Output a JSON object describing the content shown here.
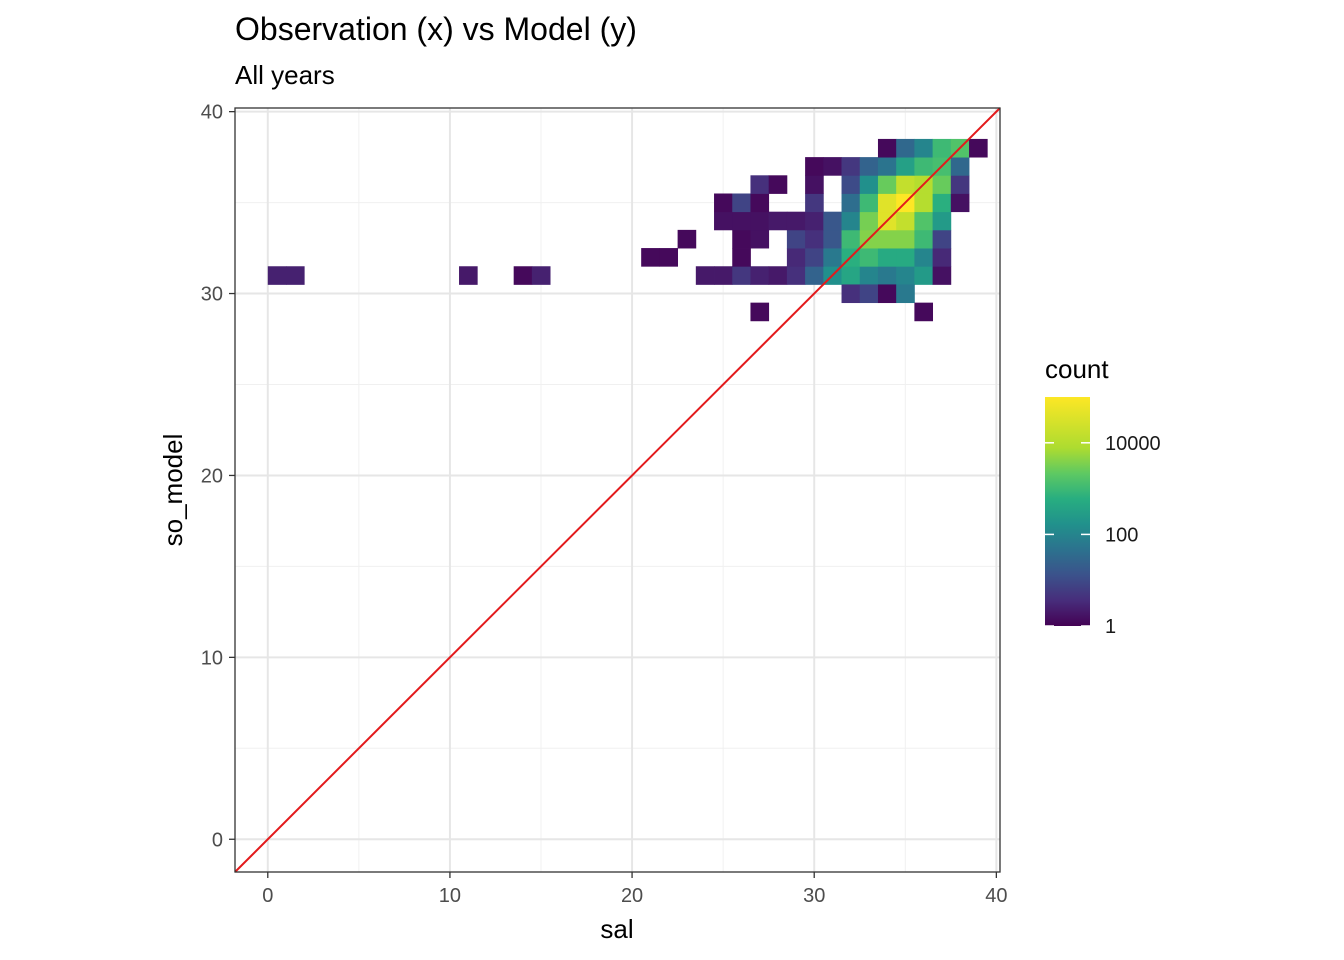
{
  "chart_data": {
    "type": "heatmap",
    "title": "Observation (x) vs Model (y)",
    "subtitle": "All years",
    "xlabel": "sal",
    "ylabel": "so_model",
    "xlim": [
      -1.8,
      40.2
    ],
    "ylim": [
      -1.8,
      40.2
    ],
    "x_ticks": [
      0,
      10,
      20,
      30,
      40
    ],
    "y_ticks": [
      0,
      10,
      20,
      30,
      40
    ],
    "grid": true,
    "bin_width": 1,
    "color_scale": "viridis, log10",
    "legend": {
      "title": "count",
      "position": "right",
      "breaks": [
        {
          "label": "1",
          "log": 0
        },
        {
          "label": "100",
          "log": 2
        },
        {
          "label": "10000",
          "log": 4
        }
      ],
      "log_max": 5
    },
    "reference_line": {
      "slope": 1,
      "intercept": 0,
      "color": "#e31a1c"
    },
    "bins": [
      {
        "x": 0.5,
        "y": 31,
        "log": 0.4
      },
      {
        "x": 1.5,
        "y": 31,
        "log": 0.4
      },
      {
        "x": 11,
        "y": 31,
        "log": 0.3
      },
      {
        "x": 14,
        "y": 31,
        "log": 0.1
      },
      {
        "x": 15,
        "y": 31,
        "log": 0.4
      },
      {
        "x": 21,
        "y": 32,
        "log": 0.1
      },
      {
        "x": 22,
        "y": 32,
        "log": 0.1
      },
      {
        "x": 23,
        "y": 33,
        "log": 0.1
      },
      {
        "x": 24,
        "y": 31,
        "log": 0.3
      },
      {
        "x": 25,
        "y": 31,
        "log": 0.3
      },
      {
        "x": 26,
        "y": 31,
        "log": 0.7
      },
      {
        "x": 27,
        "y": 31,
        "log": 0.4
      },
      {
        "x": 28,
        "y": 31,
        "log": 0.3
      },
      {
        "x": 29,
        "y": 31,
        "log": 0.6
      },
      {
        "x": 30,
        "y": 31,
        "log": 1.4
      },
      {
        "x": 31,
        "y": 31,
        "log": 2.2
      },
      {
        "x": 32,
        "y": 31,
        "log": 2.6
      },
      {
        "x": 33,
        "y": 31,
        "log": 2.0
      },
      {
        "x": 34,
        "y": 31,
        "log": 1.8
      },
      {
        "x": 35,
        "y": 31,
        "log": 2.0
      },
      {
        "x": 36,
        "y": 31,
        "log": 2.4
      },
      {
        "x": 37,
        "y": 31,
        "log": 0.2
      },
      {
        "x": 26,
        "y": 32,
        "log": 0.1
      },
      {
        "x": 29,
        "y": 32,
        "log": 0.5
      },
      {
        "x": 30,
        "y": 32,
        "log": 0.9
      },
      {
        "x": 31,
        "y": 32,
        "log": 1.8
      },
      {
        "x": 32,
        "y": 32,
        "log": 2.8
      },
      {
        "x": 33,
        "y": 32,
        "log": 3.0
      },
      {
        "x": 34,
        "y": 32,
        "log": 2.7
      },
      {
        "x": 35,
        "y": 32,
        "log": 2.7
      },
      {
        "x": 36,
        "y": 32,
        "log": 2.0
      },
      {
        "x": 37,
        "y": 32,
        "log": 0.5
      },
      {
        "x": 26,
        "y": 33,
        "log": 0.1
      },
      {
        "x": 27,
        "y": 33,
        "log": 0.2
      },
      {
        "x": 29,
        "y": 33,
        "log": 0.9
      },
      {
        "x": 30,
        "y": 33,
        "log": 0.6
      },
      {
        "x": 31,
        "y": 33,
        "log": 1.2
      },
      {
        "x": 32,
        "y": 33,
        "log": 3.0
      },
      {
        "x": 33,
        "y": 33,
        "log": 3.6
      },
      {
        "x": 34,
        "y": 33,
        "log": 3.6
      },
      {
        "x": 35,
        "y": 33,
        "log": 3.6
      },
      {
        "x": 36,
        "y": 33,
        "log": 3.0
      },
      {
        "x": 37,
        "y": 33,
        "log": 0.9
      },
      {
        "x": 25,
        "y": 34,
        "log": 0.2
      },
      {
        "x": 26,
        "y": 34,
        "log": 0.2
      },
      {
        "x": 27,
        "y": 34,
        "log": 0.2
      },
      {
        "x": 28,
        "y": 34,
        "log": 0.3
      },
      {
        "x": 29,
        "y": 34,
        "log": 0.3
      },
      {
        "x": 30,
        "y": 34,
        "log": 0.4
      },
      {
        "x": 31,
        "y": 34,
        "log": 1.2
      },
      {
        "x": 32,
        "y": 34,
        "log": 2.0
      },
      {
        "x": 33,
        "y": 34,
        "log": 3.5
      },
      {
        "x": 34,
        "y": 34,
        "log": 4.6
      },
      {
        "x": 35,
        "y": 34,
        "log": 4.2
      },
      {
        "x": 36,
        "y": 34,
        "log": 3.2
      },
      {
        "x": 37,
        "y": 34,
        "log": 2.4
      },
      {
        "x": 25,
        "y": 35,
        "log": 0.1
      },
      {
        "x": 26,
        "y": 35,
        "log": 0.9
      },
      {
        "x": 27,
        "y": 35,
        "log": 0.1
      },
      {
        "x": 30,
        "y": 35,
        "log": 0.7
      },
      {
        "x": 32,
        "y": 35,
        "log": 1.6
      },
      {
        "x": 33,
        "y": 35,
        "log": 3.0
      },
      {
        "x": 34,
        "y": 35,
        "log": 4.6
      },
      {
        "x": 35,
        "y": 35,
        "log": 5.0
      },
      {
        "x": 36,
        "y": 35,
        "log": 4.0
      },
      {
        "x": 37,
        "y": 35,
        "log": 2.8
      },
      {
        "x": 38,
        "y": 35,
        "log": 0.2
      },
      {
        "x": 27,
        "y": 36,
        "log": 0.6
      },
      {
        "x": 28,
        "y": 36,
        "log": 0.1
      },
      {
        "x": 30,
        "y": 36,
        "log": 0.2
      },
      {
        "x": 32,
        "y": 36,
        "log": 1.0
      },
      {
        "x": 33,
        "y": 36,
        "log": 2.2
      },
      {
        "x": 34,
        "y": 36,
        "log": 3.4
      },
      {
        "x": 35,
        "y": 36,
        "log": 4.2
      },
      {
        "x": 36,
        "y": 36,
        "log": 4.0
      },
      {
        "x": 37,
        "y": 36,
        "log": 3.4
      },
      {
        "x": 38,
        "y": 36,
        "log": 0.7
      },
      {
        "x": 30,
        "y": 37,
        "log": 0.1
      },
      {
        "x": 31,
        "y": 37,
        "log": 0.2
      },
      {
        "x": 32,
        "y": 37,
        "log": 0.7
      },
      {
        "x": 33,
        "y": 37,
        "log": 1.4
      },
      {
        "x": 34,
        "y": 37,
        "log": 1.7
      },
      {
        "x": 35,
        "y": 37,
        "log": 2.5
      },
      {
        "x": 36,
        "y": 37,
        "log": 3.0
      },
      {
        "x": 37,
        "y": 37,
        "log": 3.1
      },
      {
        "x": 38,
        "y": 37,
        "log": 1.5
      },
      {
        "x": 34,
        "y": 38,
        "log": 0.1
      },
      {
        "x": 35,
        "y": 38,
        "log": 1.5
      },
      {
        "x": 36,
        "y": 38,
        "log": 2.0
      },
      {
        "x": 37,
        "y": 38,
        "log": 3.0
      },
      {
        "x": 38,
        "y": 38,
        "log": 3.2
      },
      {
        "x": 39,
        "y": 38,
        "log": 0.1
      },
      {
        "x": 32,
        "y": 30,
        "log": 0.6
      },
      {
        "x": 33,
        "y": 30,
        "log": 0.9
      },
      {
        "x": 34,
        "y": 30,
        "log": 0.1
      },
      {
        "x": 35,
        "y": 30,
        "log": 1.8
      },
      {
        "x": 27,
        "y": 29,
        "log": 0.1
      },
      {
        "x": 36,
        "y": 29,
        "log": 0.1
      }
    ]
  }
}
